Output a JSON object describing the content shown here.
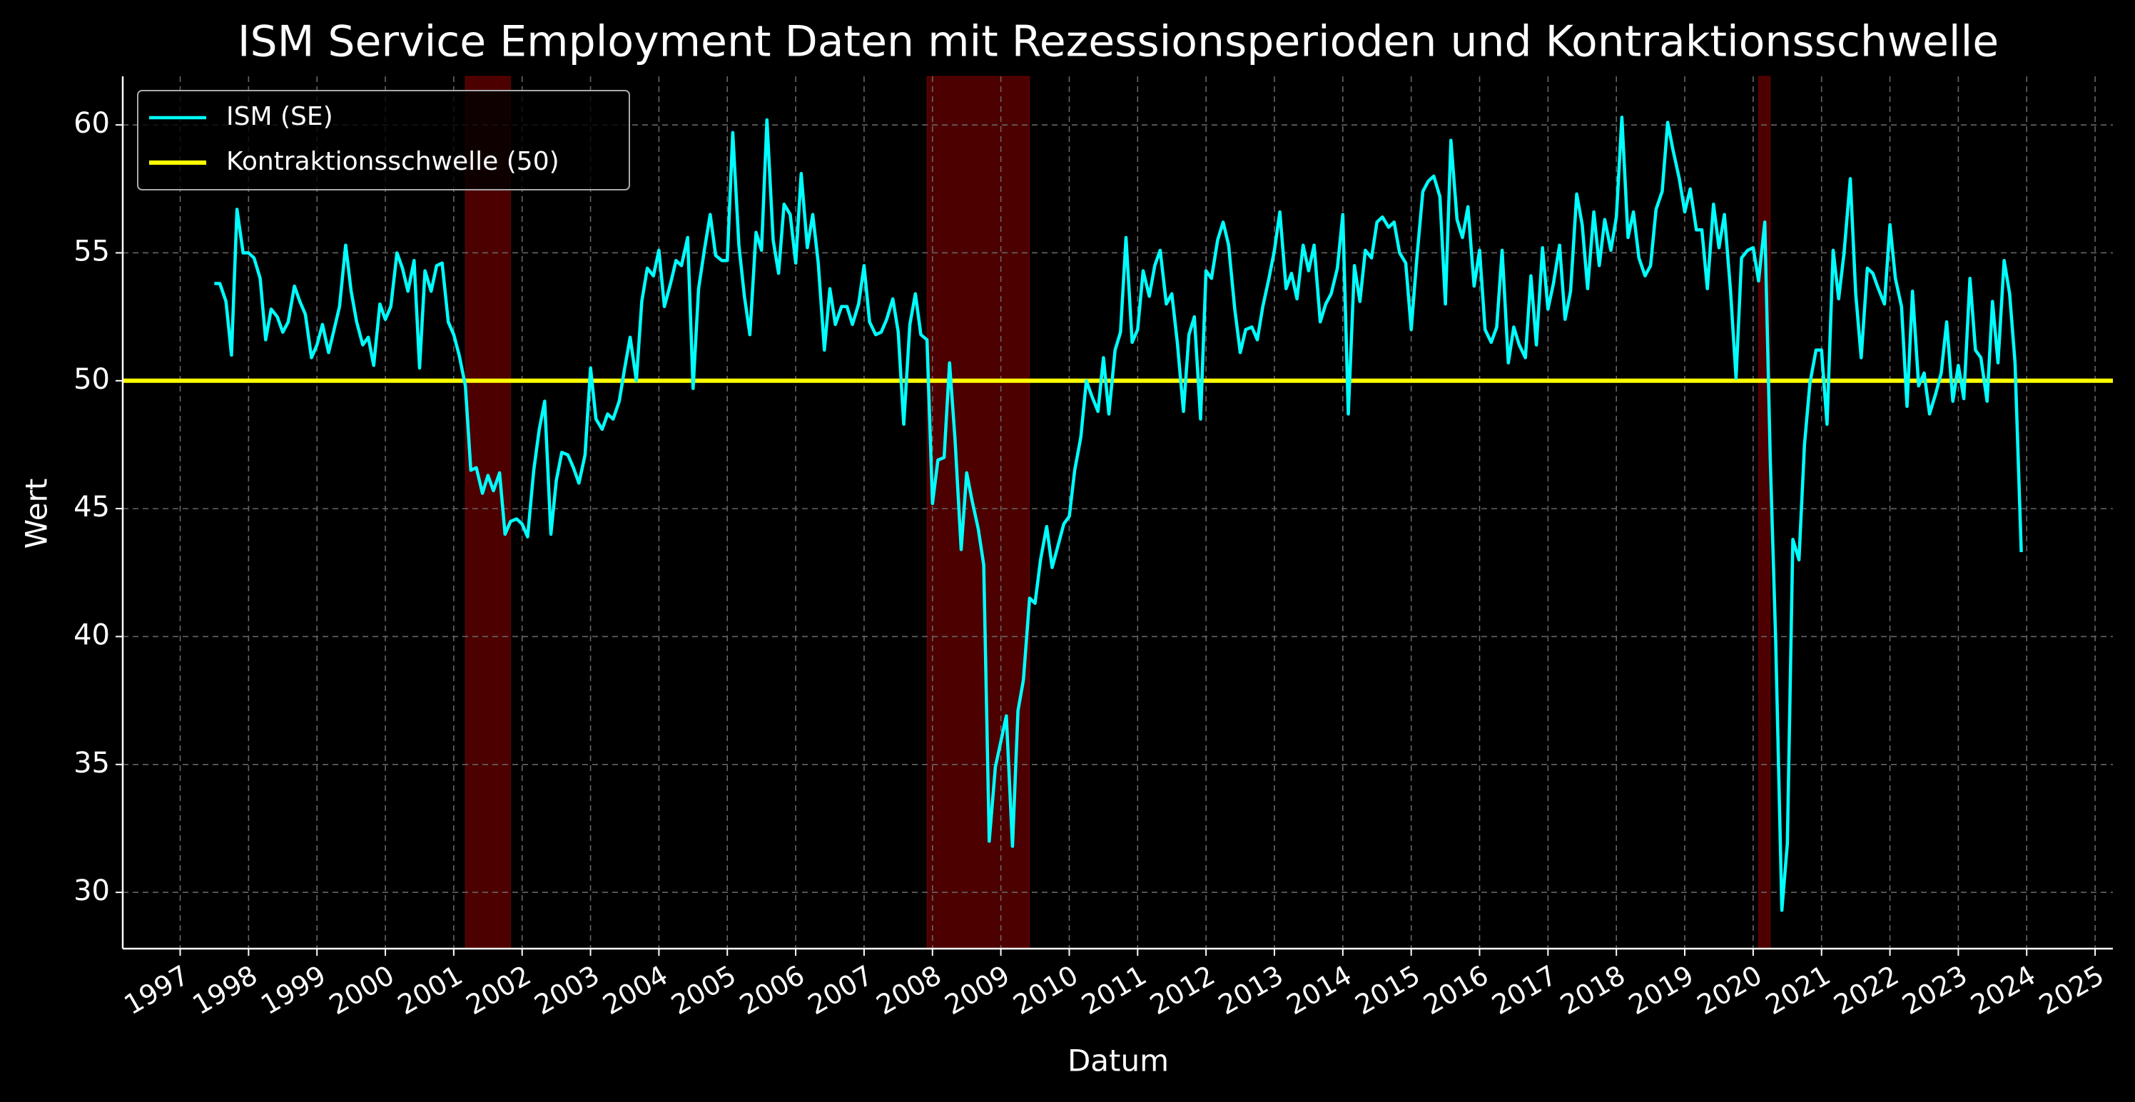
{
  "chart_data": {
    "type": "line",
    "title": "ISM Service Employment Daten mit Rezessionsperioden und Kontraktionsschwelle",
    "x_label": "Datum",
    "y_label": "Wert",
    "xlim": [
      1996.16,
      2025.26
    ],
    "ylim": [
      27.8,
      61.9
    ],
    "xticks": [
      1997,
      1998,
      1999,
      2000,
      2001,
      2002,
      2003,
      2004,
      2005,
      2006,
      2007,
      2008,
      2009,
      2010,
      2011,
      2012,
      2013,
      2014,
      2015,
      2016,
      2017,
      2018,
      2019,
      2020,
      2021,
      2022,
      2023,
      2024,
      2025
    ],
    "yticks": [
      30,
      35,
      40,
      45,
      50,
      55,
      60
    ],
    "grid": true,
    "legend": "upper left",
    "recession_color": "#ff0000",
    "recessions": [
      [
        2001.17,
        2001.83
      ],
      [
        2007.92,
        2009.42
      ],
      [
        2020.08,
        2020.25
      ]
    ],
    "hline": {
      "name": "Kontraktionsschwelle (50)",
      "value": 50,
      "color": "#ffff00"
    },
    "x": [
      1997.5,
      1997.58,
      1997.67,
      1997.75,
      1997.83,
      1997.92,
      1998,
      1998.08,
      1998.17,
      1998.25,
      1998.33,
      1998.42,
      1998.5,
      1998.58,
      1998.67,
      1998.75,
      1998.83,
      1998.92,
      1999,
      1999.08,
      1999.17,
      1999.25,
      1999.33,
      1999.42,
      1999.5,
      1999.58,
      1999.67,
      1999.75,
      1999.83,
      1999.92,
      2000,
      2000.08,
      2000.17,
      2000.25,
      2000.33,
      2000.42,
      2000.5,
      2000.58,
      2000.67,
      2000.75,
      2000.83,
      2000.92,
      2001,
      2001.08,
      2001.17,
      2001.25,
      2001.33,
      2001.42,
      2001.5,
      2001.58,
      2001.67,
      2001.75,
      2001.83,
      2001.92,
      2002,
      2002.08,
      2002.17,
      2002.25,
      2002.33,
      2002.42,
      2002.5,
      2002.58,
      2002.67,
      2002.75,
      2002.83,
      2002.92,
      2003,
      2003.08,
      2003.17,
      2003.25,
      2003.33,
      2003.42,
      2003.5,
      2003.58,
      2003.67,
      2003.75,
      2003.83,
      2003.92,
      2004,
      2004.08,
      2004.17,
      2004.25,
      2004.33,
      2004.42,
      2004.5,
      2004.58,
      2004.67,
      2004.75,
      2004.83,
      2004.92,
      2005,
      2005.08,
      2005.17,
      2005.25,
      2005.33,
      2005.42,
      2005.5,
      2005.58,
      2005.67,
      2005.75,
      2005.83,
      2005.92,
      2006,
      2006.08,
      2006.17,
      2006.25,
      2006.33,
      2006.42,
      2006.5,
      2006.58,
      2006.67,
      2006.75,
      2006.83,
      2006.92,
      2007,
      2007.08,
      2007.17,
      2007.25,
      2007.33,
      2007.42,
      2007.5,
      2007.58,
      2007.67,
      2007.75,
      2007.83,
      2007.92,
      2008,
      2008.08,
      2008.17,
      2008.25,
      2008.33,
      2008.42,
      2008.5,
      2008.58,
      2008.67,
      2008.75,
      2008.83,
      2008.92,
      2009,
      2009.08,
      2009.17,
      2009.25,
      2009.33,
      2009.42,
      2009.5,
      2009.58,
      2009.67,
      2009.75,
      2009.83,
      2009.92,
      2010,
      2010.08,
      2010.17,
      2010.25,
      2010.33,
      2010.42,
      2010.5,
      2010.58,
      2010.67,
      2010.75,
      2010.83,
      2010.92,
      2011,
      2011.08,
      2011.17,
      2011.25,
      2011.33,
      2011.42,
      2011.5,
      2011.58,
      2011.67,
      2011.75,
      2011.83,
      2011.92,
      2012,
      2012.08,
      2012.17,
      2012.25,
      2012.33,
      2012.42,
      2012.5,
      2012.58,
      2012.67,
      2012.75,
      2012.83,
      2012.92,
      2013,
      2013.08,
      2013.17,
      2013.25,
      2013.33,
      2013.42,
      2013.5,
      2013.58,
      2013.67,
      2013.75,
      2013.83,
      2013.92,
      2014,
      2014.08,
      2014.17,
      2014.25,
      2014.33,
      2014.42,
      2014.5,
      2014.58,
      2014.67,
      2014.75,
      2014.83,
      2014.92,
      2015,
      2015.08,
      2015.17,
      2015.25,
      2015.33,
      2015.42,
      2015.5,
      2015.58,
      2015.67,
      2015.75,
      2015.83,
      2015.92,
      2016,
      2016.08,
      2016.17,
      2016.25,
      2016.33,
      2016.42,
      2016.5,
      2016.58,
      2016.67,
      2016.75,
      2016.83,
      2016.92,
      2017,
      2017.08,
      2017.17,
      2017.25,
      2017.33,
      2017.42,
      2017.5,
      2017.58,
      2017.67,
      2017.75,
      2017.83,
      2017.92,
      2018,
      2018.08,
      2018.17,
      2018.25,
      2018.33,
      2018.42,
      2018.5,
      2018.58,
      2018.67,
      2018.75,
      2018.83,
      2018.92,
      2019,
      2019.08,
      2019.17,
      2019.25,
      2019.33,
      2019.42,
      2019.5,
      2019.58,
      2019.67,
      2019.75,
      2019.83,
      2019.92,
      2020,
      2020.08,
      2020.17,
      2020.25,
      2020.33,
      2020.42,
      2020.5,
      2020.58,
      2020.67,
      2020.75,
      2020.83,
      2020.92,
      2021,
      2021.08,
      2021.17,
      2021.25,
      2021.33,
      2021.42,
      2021.5,
      2021.58,
      2021.67,
      2021.75,
      2021.83,
      2021.92,
      2022,
      2022.08,
      2022.17,
      2022.25,
      2022.33,
      2022.42,
      2022.5,
      2022.58,
      2022.67,
      2022.75,
      2022.83,
      2022.92,
      2023,
      2023.08,
      2023.17,
      2023.25,
      2023.33,
      2023.42,
      2023.5,
      2023.58,
      2023.67,
      2023.75,
      2023.83,
      2023.92
    ],
    "series": [
      {
        "name": "ISM (SE)",
        "color": "#00ffff",
        "values": [
          53.8,
          53.8,
          53.1,
          51.0,
          56.7,
          55.0,
          55.0,
          54.8,
          54.0,
          51.6,
          52.8,
          52.5,
          51.9,
          52.3,
          53.7,
          53.1,
          52.6,
          50.9,
          51.4,
          52.2,
          51.1,
          52.0,
          52.9,
          55.3,
          53.5,
          52.3,
          51.4,
          51.7,
          50.6,
          53.0,
          52.4,
          52.9,
          55.0,
          54.4,
          53.5,
          54.7,
          50.5,
          54.3,
          53.5,
          54.5,
          54.6,
          52.3,
          51.8,
          51.0,
          49.8,
          46.5,
          46.6,
          45.6,
          46.3,
          45.7,
          46.4,
          44.0,
          44.5,
          44.6,
          44.4,
          43.9,
          46.5,
          48.1,
          49.2,
          44.0,
          46.1,
          47.2,
          47.1,
          46.6,
          46.0,
          47.1,
          50.5,
          48.5,
          48.1,
          48.7,
          48.5,
          49.2,
          50.5,
          51.7,
          50.0,
          53.1,
          54.4,
          54.1,
          55.1,
          52.9,
          53.8,
          54.7,
          54.5,
          55.6,
          49.7,
          53.6,
          55.2,
          56.5,
          54.9,
          54.7,
          54.7,
          59.7,
          55.3,
          53.3,
          51.8,
          55.8,
          55.1,
          60.2,
          55.5,
          54.2,
          56.9,
          56.5,
          54.6,
          58.1,
          55.2,
          56.5,
          54.6,
          51.2,
          53.6,
          52.2,
          52.9,
          52.9,
          52.2,
          53.0,
          54.5,
          52.3,
          51.8,
          51.9,
          52.4,
          53.2,
          51.9,
          48.3,
          52.2,
          53.4,
          51.8,
          51.6,
          45.2,
          46.9,
          47.0,
          50.7,
          47.7,
          43.4,
          46.4,
          45.3,
          44.2,
          42.8,
          32.0,
          34.9,
          35.9,
          36.9,
          31.8,
          37.1,
          38.3,
          41.5,
          41.3,
          43.0,
          44.3,
          42.7,
          43.5,
          44.4,
          44.7,
          46.5,
          47.8,
          50.0,
          49.4,
          48.8,
          50.9,
          48.7,
          51.2,
          51.9,
          55.6,
          51.5,
          52.0,
          54.3,
          53.3,
          54.5,
          55.1,
          53.0,
          53.4,
          51.5,
          48.8,
          51.8,
          52.5,
          48.5,
          54.3,
          54.0,
          55.5,
          56.2,
          55.3,
          52.8,
          51.1,
          52.0,
          52.1,
          51.6,
          52.9,
          54.0,
          55.1,
          56.6,
          53.6,
          54.2,
          53.2,
          55.3,
          54.3,
          55.3,
          52.3,
          53.0,
          53.4,
          54.4,
          56.5,
          48.7,
          54.5,
          53.1,
          55.1,
          54.8,
          56.2,
          56.4,
          56.0,
          56.2,
          55.0,
          54.6,
          52.0,
          54.7,
          57.4,
          57.8,
          58.0,
          57.2,
          53.0,
          59.4,
          56.3,
          55.6,
          56.8,
          53.7,
          55.1,
          52.0,
          51.5,
          52.1,
          55.1,
          50.7,
          52.1,
          51.4,
          50.9,
          54.1,
          51.4,
          55.2,
          52.8,
          53.8,
          55.3,
          52.4,
          53.5,
          57.3,
          56.1,
          53.6,
          56.6,
          54.5,
          56.3,
          55.1,
          56.4,
          60.3,
          55.6,
          56.6,
          54.8,
          54.1,
          54.5,
          56.7,
          57.4,
          60.1,
          59.0,
          57.9,
          56.6,
          57.5,
          55.9,
          55.9,
          53.6,
          56.9,
          55.2,
          56.5,
          53.5,
          50.1,
          54.8,
          55.1,
          55.2,
          53.9,
          56.2,
          47.0,
          39.8,
          29.3,
          31.9,
          43.8,
          43.0,
          47.5,
          49.9,
          51.2,
          51.2,
          48.3,
          55.1,
          53.2,
          55.0,
          57.9,
          53.4,
          50.9,
          54.4,
          54.2,
          53.6,
          53.0,
          56.1,
          54.0,
          52.9,
          49.0,
          53.5,
          49.8,
          50.3,
          48.7,
          49.5,
          50.3,
          52.3,
          49.2,
          50.6,
          49.3,
          54.0,
          51.2,
          50.9,
          49.2,
          53.1,
          50.7,
          54.7,
          53.4,
          50.7,
          43.3
        ]
      }
    ]
  }
}
